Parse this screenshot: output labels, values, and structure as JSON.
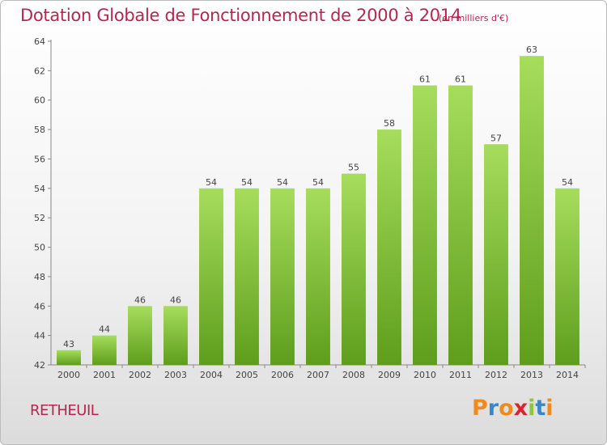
{
  "header": {
    "title": "Dotation Globale de Fonctionnement de 2000 à 2014",
    "unit": "(en milliers d'€)"
  },
  "footer": {
    "commune": "RETHEUIL",
    "logo_letters": [
      "P",
      "r",
      "o",
      "x",
      "i",
      "t",
      "i"
    ],
    "logo_colors": [
      "#f08a1c",
      "#3a86c8",
      "#f08a1c",
      "#d8262f",
      "#8cc63e",
      "#3a86c8",
      "#f08a1c"
    ]
  },
  "chart_data": {
    "type": "bar",
    "title": "Dotation Globale de Fonctionnement de 2000 à 2014",
    "subtitle": "(en milliers d'€)",
    "categories": [
      "2000",
      "2001",
      "2002",
      "2003",
      "2004",
      "2005",
      "2006",
      "2007",
      "2008",
      "2009",
      "2010",
      "2011",
      "2012",
      "2013",
      "2014"
    ],
    "values": [
      43,
      44,
      46,
      46,
      54,
      54,
      54,
      54,
      55,
      58,
      61,
      61,
      57,
      63,
      54
    ],
    "ylim": [
      42,
      64
    ],
    "yticks": [
      42,
      44,
      46,
      48,
      50,
      52,
      54,
      56,
      58,
      60,
      62,
      64
    ],
    "grid": false,
    "bar_color": "#7cc431",
    "bar_color_light": "#a6dd5c",
    "bar_color_dark": "#5e9e1c"
  }
}
